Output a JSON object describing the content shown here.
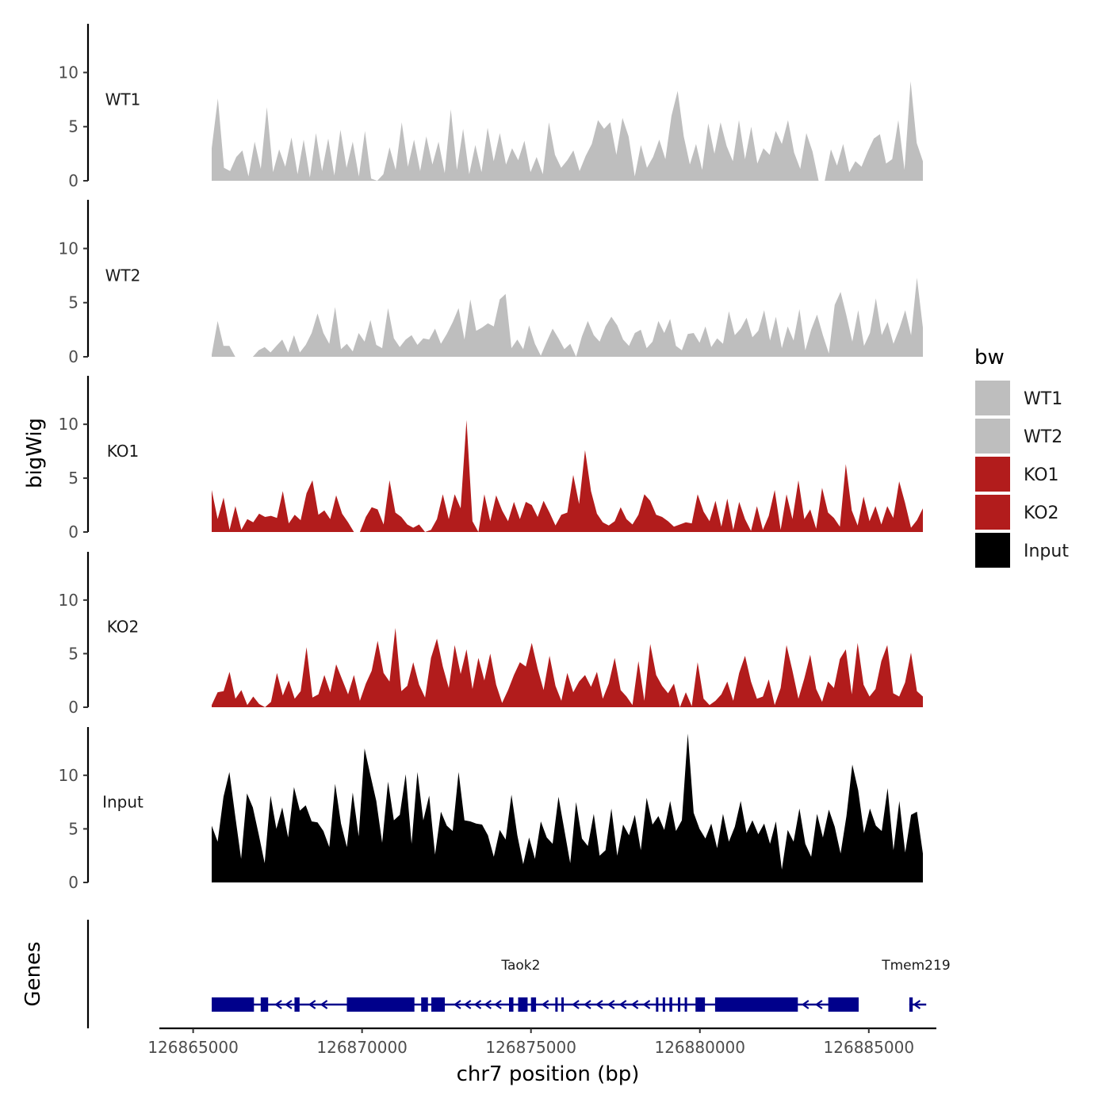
{
  "chart_data": {
    "type": "area",
    "ylabel": "bigWig",
    "xlabel": "chr7 position (bp)",
    "xlim": [
      126864000,
      126887000
    ],
    "ylim": [
      0,
      14.5
    ],
    "yticks": [
      0,
      5,
      10
    ],
    "xticks": [
      126865000,
      126870000,
      126875000,
      126880000,
      126885000
    ],
    "x_start": 126865550,
    "x_end": 126886600,
    "series": [
      {
        "name": "WT1",
        "color": "#bebebe",
        "values": [
          3.0,
          7.6,
          1.2,
          0.9,
          2.2,
          2.8,
          0.4,
          3.6,
          1.1,
          6.8,
          0.8,
          2.9,
          1.3,
          4.0,
          0.6,
          3.8,
          0.3,
          4.4,
          0.9,
          3.9,
          0.5,
          4.7,
          1.2,
          3.6,
          0.4,
          4.6,
          0.2,
          0.0,
          0.6,
          3.1,
          1.0,
          5.4,
          1.3,
          3.8,
          0.9,
          4.1,
          1.5,
          3.6,
          0.7,
          6.6,
          1.0,
          4.8,
          0.6,
          3.3,
          0.8,
          4.9,
          1.8,
          4.4,
          1.5,
          3.0,
          1.9,
          3.7,
          0.8,
          2.2,
          0.6,
          5.4,
          2.4,
          1.2,
          1.9,
          2.8,
          0.9,
          2.3,
          3.4,
          5.6,
          4.8,
          5.4,
          2.4,
          5.8,
          4.1,
          0.4,
          3.3,
          1.2,
          2.2,
          3.8,
          2.0,
          6.0,
          8.3,
          4.1,
          1.5,
          3.4,
          1.0,
          5.3,
          2.5,
          5.4,
          3.2,
          1.8,
          5.6,
          2.0,
          5.0,
          1.6,
          3.0,
          2.4,
          4.6,
          3.4,
          5.6,
          2.6,
          1.1,
          4.4,
          2.7,
          0.0,
          0.0,
          2.9,
          1.4,
          3.4,
          0.8,
          1.8,
          1.3,
          2.7,
          3.9,
          4.3,
          1.6,
          2.0,
          5.6,
          1.0,
          9.2,
          3.5,
          1.8
        ]
      },
      {
        "name": "WT2",
        "color": "#bebebe",
        "values": [
          0.2,
          3.3,
          1.0,
          1.0,
          0.0,
          0.0,
          0.0,
          0.0,
          0.6,
          0.9,
          0.4,
          1.0,
          1.6,
          0.4,
          2.0,
          0.4,
          1.1,
          2.2,
          4.0,
          2.2,
          1.2,
          4.6,
          0.7,
          1.2,
          0.5,
          2.2,
          1.4,
          3.4,
          1.1,
          0.8,
          4.5,
          1.7,
          0.9,
          1.6,
          2.0,
          1.1,
          1.7,
          1.6,
          2.6,
          1.2,
          2.1,
          3.2,
          4.5,
          1.6,
          5.3,
          2.4,
          2.7,
          3.1,
          2.8,
          5.3,
          5.8,
          0.8,
          1.6,
          0.7,
          2.9,
          1.2,
          0.1,
          1.4,
          2.6,
          1.7,
          0.7,
          1.2,
          0.0,
          1.9,
          3.3,
          2.0,
          1.4,
          2.8,
          3.7,
          2.9,
          1.6,
          1.0,
          2.2,
          2.5,
          0.8,
          1.4,
          3.3,
          2.2,
          3.5,
          1.0,
          0.6,
          2.1,
          2.2,
          1.3,
          2.8,
          0.9,
          1.7,
          1.2,
          4.2,
          2.0,
          2.6,
          3.6,
          1.8,
          2.4,
          4.3,
          1.5,
          3.7,
          0.8,
          2.8,
          1.5,
          4.4,
          0.6,
          2.5,
          3.9,
          2.0,
          0.3,
          4.8,
          6.0,
          3.8,
          1.4,
          4.3,
          1.0,
          2.2,
          5.4,
          2.0,
          3.2,
          1.2,
          2.6,
          4.3,
          2.0,
          7.3,
          2.7
        ]
      },
      {
        "name": "KO1",
        "color": "#b21c1c",
        "values": [
          3.9,
          1.2,
          3.2,
          0.2,
          2.4,
          0.2,
          1.2,
          0.9,
          1.7,
          1.4,
          1.5,
          1.3,
          3.8,
          0.8,
          1.6,
          1.1,
          3.6,
          4.8,
          1.6,
          2.0,
          1.2,
          3.4,
          1.7,
          0.9,
          0.0,
          0.0,
          1.4,
          2.3,
          2.1,
          0.7,
          4.8,
          1.8,
          1.4,
          0.7,
          0.4,
          0.7,
          0.0,
          0.2,
          1.2,
          3.5,
          1.2,
          3.5,
          2.2,
          10.4,
          1.0,
          0.0,
          3.5,
          1.0,
          3.4,
          2.0,
          1.0,
          2.8,
          1.2,
          2.8,
          2.5,
          1.4,
          2.9,
          1.8,
          0.6,
          1.6,
          1.8,
          5.3,
          2.6,
          7.6,
          3.8,
          1.7,
          0.9,
          0.6,
          1.0,
          2.3,
          1.2,
          0.7,
          1.6,
          3.5,
          2.9,
          1.6,
          1.4,
          1.0,
          0.5,
          0.7,
          0.9,
          0.8,
          3.5,
          1.9,
          1.0,
          2.9,
          0.5,
          3.1,
          0.2,
          2.8,
          1.2,
          0.1,
          2.4,
          0.2,
          1.5,
          3.9,
          0.2,
          3.5,
          1.2,
          4.8,
          1.2,
          2.1,
          0.3,
          4.1,
          1.8,
          1.3,
          0.5,
          6.3,
          2.0,
          0.6,
          3.3,
          1.0,
          2.4,
          0.7,
          2.4,
          1.3,
          4.7,
          2.7,
          0.4,
          1.1,
          2.2
        ]
      },
      {
        "name": "KO2",
        "color": "#b21c1c",
        "values": [
          0.2,
          1.4,
          1.5,
          3.3,
          0.8,
          1.6,
          0.2,
          1.0,
          0.3,
          0.0,
          0.5,
          3.2,
          1.1,
          2.5,
          0.8,
          1.5,
          5.6,
          0.9,
          1.2,
          3.0,
          1.4,
          4.0,
          2.6,
          1.2,
          3.0,
          0.6,
          2.2,
          3.4,
          6.2,
          3.2,
          2.4,
          7.4,
          1.5,
          2.0,
          4.2,
          2.1,
          0.9,
          4.6,
          6.4,
          3.8,
          1.8,
          5.8,
          3.1,
          5.4,
          1.7,
          4.6,
          2.5,
          5.0,
          2.1,
          0.4,
          1.6,
          3.0,
          4.2,
          3.8,
          6.0,
          3.6,
          1.6,
          4.8,
          2.0,
          0.6,
          3.2,
          1.4,
          2.4,
          3.0,
          1.9,
          3.3,
          0.8,
          2.2,
          4.6,
          1.6,
          1.0,
          0.2,
          4.3,
          0.6,
          5.9,
          3.0,
          2.0,
          1.3,
          2.2,
          0.0,
          1.4,
          0.1,
          4.2,
          0.8,
          0.2,
          0.6,
          1.2,
          2.4,
          0.6,
          3.2,
          4.8,
          2.4,
          0.8,
          1.0,
          2.6,
          0.2,
          1.8,
          5.8,
          3.4,
          0.8,
          2.7,
          4.9,
          1.7,
          0.5,
          2.4,
          1.8,
          4.5,
          5.4,
          1.2,
          6.0,
          2.1,
          1.0,
          1.7,
          4.3,
          5.8,
          1.3,
          1.0,
          2.3,
          5.1,
          1.5,
          1.0
        ]
      },
      {
        "name": "Input",
        "color": "#000000",
        "values": [
          5.3,
          3.8,
          8.0,
          10.3,
          6.2,
          2.2,
          8.3,
          7.0,
          4.5,
          1.8,
          8.1,
          5.0,
          7.0,
          4.2,
          8.9,
          6.7,
          7.2,
          5.7,
          5.6,
          4.8,
          3.3,
          9.2,
          5.5,
          3.3,
          8.4,
          4.3,
          12.5,
          10.0,
          7.6,
          3.7,
          9.4,
          5.8,
          6.3,
          10.1,
          3.6,
          10.3,
          5.8,
          8.1,
          2.6,
          6.6,
          5.3,
          4.8,
          10.3,
          5.8,
          5.7,
          5.5,
          5.4,
          4.4,
          2.4,
          4.9,
          4.0,
          8.2,
          4.4,
          1.7,
          4.2,
          2.2,
          5.7,
          4.2,
          3.6,
          8.0,
          4.9,
          1.8,
          7.5,
          4.1,
          3.4,
          6.4,
          2.5,
          3.0,
          6.9,
          2.5,
          5.4,
          4.4,
          6.3,
          3.0,
          7.9,
          5.4,
          6.2,
          4.9,
          7.6,
          4.8,
          5.8,
          13.9,
          6.5,
          5.0,
          4.1,
          5.5,
          3.2,
          6.4,
          3.8,
          5.2,
          7.6,
          4.6,
          5.8,
          4.5,
          5.5,
          3.6,
          5.7,
          1.2,
          4.9,
          3.8,
          6.9,
          3.6,
          2.4,
          6.4,
          4.2,
          6.8,
          5.2,
          2.7,
          6.2,
          11.0,
          8.6,
          4.6,
          6.9,
          5.3,
          4.8,
          8.8,
          3.0,
          7.6,
          2.8,
          6.3,
          6.6,
          2.7
        ]
      }
    ],
    "genes": [
      {
        "name": "Taok2",
        "start": 126865550,
        "end": 126884700,
        "label_x": 126874700,
        "exons": [
          [
            126865550,
            126866800
          ],
          [
            126867000,
            126867220
          ],
          [
            126868000,
            126868150
          ],
          [
            126869550,
            126871550
          ],
          [
            126871750,
            126871950
          ],
          [
            126872050,
            126872450
          ],
          [
            126874350,
            126874480
          ],
          [
            126874620,
            126874900
          ],
          [
            126875000,
            126875150
          ],
          [
            126875720,
            126875790
          ],
          [
            126875900,
            126875960
          ],
          [
            126878700,
            126878760
          ],
          [
            126878900,
            126878960
          ],
          [
            126879100,
            126879180
          ],
          [
            126879350,
            126879420
          ],
          [
            126879550,
            126879610
          ],
          [
            126879870,
            126880150
          ],
          [
            126880450,
            126882900
          ],
          [
            126883800,
            126884700
          ]
        ],
        "arrows": [
          126867500,
          126867800,
          126868500,
          126868850,
          126872800,
          126873100,
          126873400,
          126873700,
          126874000,
          126875400,
          126876300,
          126876650,
          126877000,
          126877350,
          126877700,
          126878050,
          126878400,
          126883100,
          126883500
        ]
      },
      {
        "name": "Tmem219",
        "start": 126886200,
        "end": 126886700,
        "label_x": 126886400,
        "exons": [
          [
            126886200,
            126886300
          ]
        ],
        "arrows": [
          126886400
        ]
      }
    ],
    "gene_color": "#00008b",
    "gene_track_label": "Genes"
  },
  "legend": {
    "title": "bw",
    "items": [
      {
        "label": "WT1",
        "color": "#bebebe"
      },
      {
        "label": "WT2",
        "color": "#bebebe"
      },
      {
        "label": "KO1",
        "color": "#b21c1c"
      },
      {
        "label": "KO2",
        "color": "#b21c1c"
      },
      {
        "label": "Input",
        "color": "#000000"
      }
    ]
  }
}
